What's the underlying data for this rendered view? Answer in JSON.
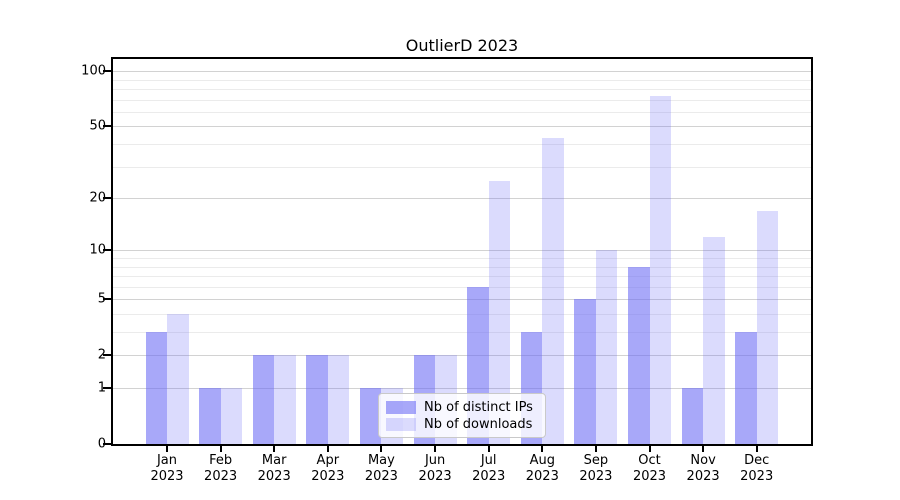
{
  "title": "OutlierD 2023",
  "legend": {
    "items": [
      {
        "label": "Nb of distinct IPs",
        "series": "ips"
      },
      {
        "label": "Nb of downloads",
        "series": "downloads"
      }
    ]
  },
  "y_axis": {
    "major_ticks": [
      {
        "label": "100",
        "value": 100
      },
      {
        "label": "50",
        "value": 50
      },
      {
        "label": "20",
        "value": 20
      },
      {
        "label": "10",
        "value": 10
      },
      {
        "label": "5",
        "value": 5
      },
      {
        "label": "2",
        "value": 2
      },
      {
        "label": "1",
        "value": 1
      },
      {
        "label": "0",
        "value": 0
      }
    ],
    "minor_gridline_values": [
      3,
      4,
      6,
      7,
      8,
      9,
      30,
      40,
      60,
      70,
      80,
      90
    ]
  },
  "x_axis": {
    "months": [
      "Jan",
      "Feb",
      "Mar",
      "Apr",
      "May",
      "Jun",
      "Jul",
      "Aug",
      "Sep",
      "Oct",
      "Nov",
      "Dec"
    ],
    "year": "2023"
  },
  "colors": {
    "ips": "rgba(105,105,245,0.58)",
    "downloads": "rgba(105,105,245,0.24)",
    "grid_major": "#d2d2d2",
    "grid_minor": "#ebebeb",
    "axis": "#000000",
    "legend_bg": "rgba(255,255,255,0.8)",
    "legend_border": "#c9c9c9"
  },
  "chart_data": {
    "type": "bar",
    "title": "OutlierD 2023",
    "categories": [
      "Jan 2023",
      "Feb 2023",
      "Mar 2023",
      "Apr 2023",
      "May 2023",
      "Jun 2023",
      "Jul 2023",
      "Aug 2023",
      "Sep 2023",
      "Oct 2023",
      "Nov 2023",
      "Dec 2023"
    ],
    "series": [
      {
        "name": "Nb of distinct IPs",
        "key": "ips",
        "values": [
          3,
          1,
          2,
          2,
          1,
          2,
          6,
          3,
          5,
          8,
          1,
          3
        ]
      },
      {
        "name": "Nb of downloads",
        "key": "downloads",
        "values": [
          4,
          1,
          2,
          2,
          1,
          2,
          25,
          43,
          10,
          73,
          12,
          17
        ]
      }
    ],
    "yscale": "log1p",
    "y_ticks": [
      0,
      1,
      2,
      5,
      10,
      20,
      50,
      100
    ],
    "ylim": [
      0,
      116
    ],
    "grid": true,
    "legend_position": "lower center"
  }
}
